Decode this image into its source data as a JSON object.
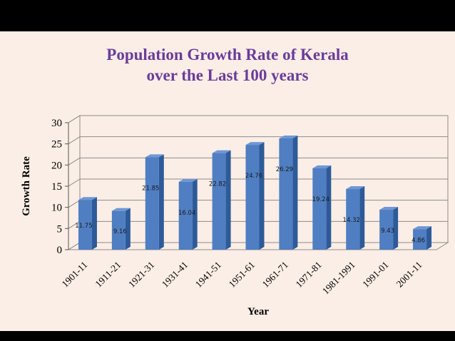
{
  "slide": {
    "title_line1": "Population Growth Rate of Kerala",
    "title_line2": "over the Last 100 years"
  },
  "chart_data": {
    "type": "bar",
    "title": "Population Growth Rate of Kerala over the Last 100 years",
    "xlabel": "Year",
    "ylabel": "Growth Rate",
    "categories": [
      "1901-11",
      "1911-21",
      "1921-31",
      "1931-41",
      "1941-51",
      "1951-61",
      "1961-71",
      "1971-81",
      "1981-1991",
      "1991-01",
      "2001-11"
    ],
    "values": [
      11.75,
      9.16,
      21.85,
      16.04,
      22.82,
      24.76,
      26.29,
      19.24,
      14.32,
      9.43,
      4.86
    ],
    "data_labels": [
      "11.75",
      "9.16",
      "21.85",
      "16.04",
      "22.82",
      "24.76",
      "26.29",
      "19.24",
      "14.32",
      "9.43",
      "4.86"
    ],
    "ylim": [
      0,
      30
    ],
    "yticks": [
      0,
      5,
      10,
      15,
      20,
      25,
      30
    ],
    "grid": true,
    "legend": "none",
    "bar_color": "#4f7ec2",
    "bar_side_color": "#2d5a99",
    "bar_top_color": "#6f97d3",
    "title_color": "#6b3c9b"
  }
}
